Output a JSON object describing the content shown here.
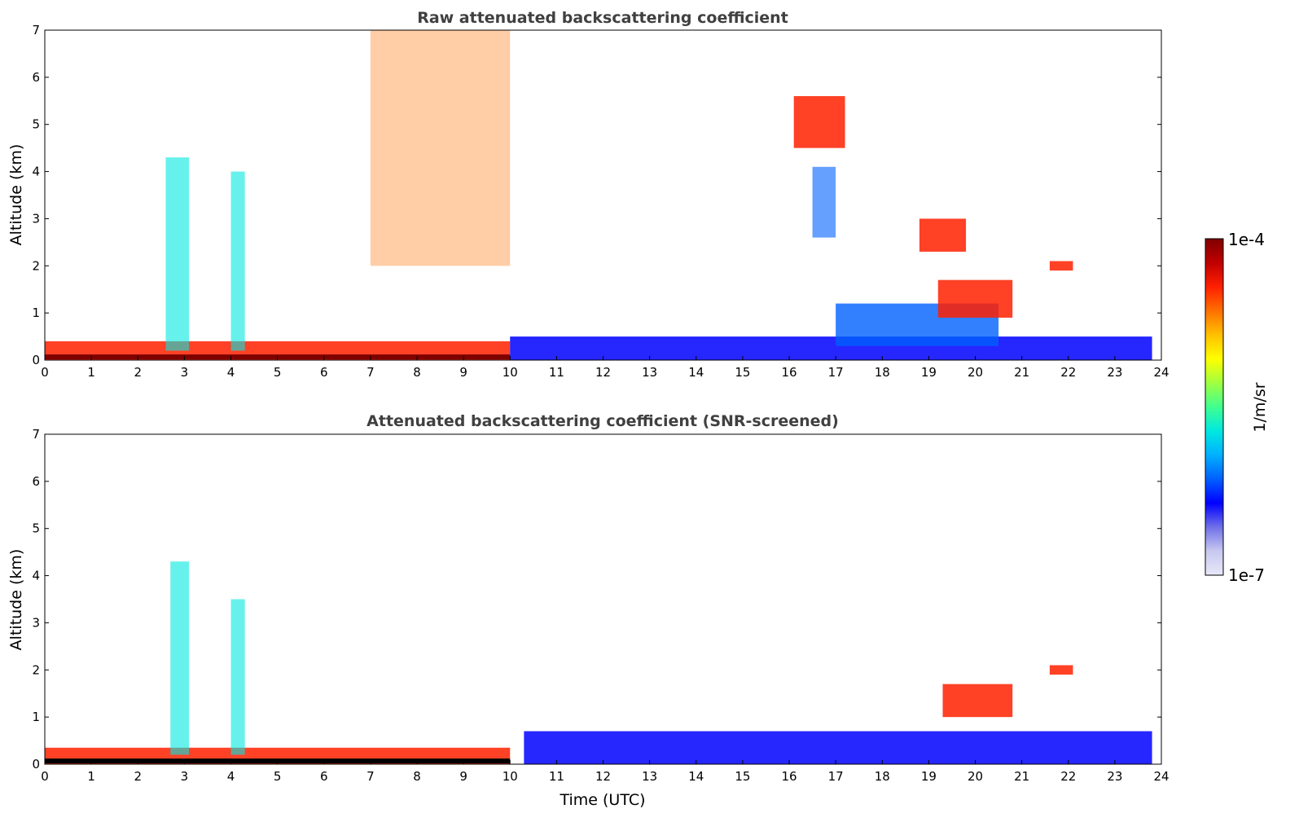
{
  "chart_data": [
    {
      "type": "heatmap",
      "title": "Raw attenuated backscattering coefficient",
      "xlabel": "",
      "ylabel": "Altitude (km)",
      "xlim": [
        0,
        24
      ],
      "ylim": [
        0,
        7
      ],
      "x_ticks": [
        "0",
        "1",
        "2",
        "3",
        "4",
        "5",
        "6",
        "7",
        "8",
        "9",
        "10",
        "11",
        "12",
        "13",
        "14",
        "15",
        "16",
        "17",
        "18",
        "19",
        "20",
        "21",
        "22",
        "23",
        "24"
      ],
      "y_ticks": [
        "0",
        "1",
        "2",
        "3",
        "4",
        "5",
        "6",
        "7"
      ],
      "grid": false,
      "features": [
        {
          "kind": "boundary_layer",
          "t_start": 0,
          "t_end": 10,
          "alt": [
            0.0,
            0.4
          ],
          "level": "high"
        },
        {
          "kind": "boundary_layer",
          "t_start": 10,
          "t_end": 23.8,
          "alt": [
            0.0,
            0.5
          ],
          "level": "medium"
        },
        {
          "kind": "aerosol_layer",
          "t_start": 17,
          "t_end": 20.5,
          "alt": [
            0.3,
            1.2
          ],
          "level": "medium"
        },
        {
          "kind": "cloud",
          "t_start": 19.2,
          "t_end": 20.8,
          "alt": [
            0.9,
            1.7
          ],
          "level": "high"
        },
        {
          "kind": "cloud",
          "t_start": 18.8,
          "t_end": 19.8,
          "alt": [
            2.3,
            3.0
          ],
          "level": "high"
        },
        {
          "kind": "cloud",
          "t_start": 21.6,
          "t_end": 22.1,
          "alt": [
            1.9,
            2.1
          ],
          "level": "high"
        },
        {
          "kind": "cloud",
          "t_start": 16.1,
          "t_end": 17.2,
          "alt": [
            4.5,
            5.6
          ],
          "level": "high"
        },
        {
          "kind": "cirrus",
          "t_start": 16.5,
          "t_end": 17.0,
          "alt": [
            2.6,
            4.1
          ],
          "level": "medium"
        },
        {
          "kind": "aerosol_plume",
          "t_start": 2.6,
          "t_end": 3.1,
          "alt": [
            0.2,
            4.3
          ],
          "level": "low"
        },
        {
          "kind": "aerosol_plume",
          "t_start": 4.0,
          "t_end": 4.3,
          "alt": [
            0.2,
            4.0
          ],
          "level": "low"
        },
        {
          "kind": "background_noise",
          "t_start": 7,
          "t_end": 10,
          "alt": [
            2.0,
            7.0
          ],
          "level": "high"
        }
      ]
    },
    {
      "type": "heatmap",
      "title": "Attenuated backscattering coefficient (SNR-screened)",
      "xlabel": "Time (UTC)",
      "ylabel": "Altitude (km)",
      "xlim": [
        0,
        24
      ],
      "ylim": [
        0,
        7
      ],
      "x_ticks": [
        "0",
        "1",
        "2",
        "3",
        "4",
        "5",
        "6",
        "7",
        "8",
        "9",
        "10",
        "11",
        "12",
        "13",
        "14",
        "15",
        "16",
        "17",
        "18",
        "19",
        "20",
        "21",
        "22",
        "23",
        "24"
      ],
      "y_ticks": [
        "0",
        "1",
        "2",
        "3",
        "4",
        "5",
        "6",
        "7"
      ],
      "grid": false,
      "features": [
        {
          "kind": "boundary_layer",
          "t_start": 0,
          "t_end": 10,
          "alt": [
            0.0,
            0.35
          ],
          "level": "high"
        },
        {
          "kind": "boundary_layer",
          "t_start": 10.3,
          "t_end": 23.8,
          "alt": [
            0.0,
            0.7
          ],
          "level": "medium"
        },
        {
          "kind": "aerosol_plume",
          "t_start": 2.7,
          "t_end": 3.1,
          "alt": [
            0.2,
            4.3
          ],
          "level": "low"
        },
        {
          "kind": "aerosol_plume",
          "t_start": 4.0,
          "t_end": 4.3,
          "alt": [
            0.2,
            3.5
          ],
          "level": "low"
        },
        {
          "kind": "cloud",
          "t_start": 19.3,
          "t_end": 20.8,
          "alt": [
            1.0,
            1.7
          ],
          "level": "high"
        },
        {
          "kind": "cloud",
          "t_start": 21.6,
          "t_end": 22.1,
          "alt": [
            1.9,
            2.1
          ],
          "level": "high"
        }
      ]
    }
  ],
  "colorbar": {
    "label": "1/m/sr",
    "min_label": "1e-7",
    "max_label": "1e-4",
    "vmin": 1e-07,
    "vmax": 0.0001,
    "scale": "log",
    "colormap": "jet",
    "colors": [
      "#e8e8f8",
      "#c8c8f0",
      "#7070e8",
      "#0000ff",
      "#0060ff",
      "#00b0ff",
      "#00e8e0",
      "#40ff90",
      "#a0ff40",
      "#ffff00",
      "#ffc000",
      "#ff7000",
      "#ff2000",
      "#c00000",
      "#800000"
    ]
  }
}
